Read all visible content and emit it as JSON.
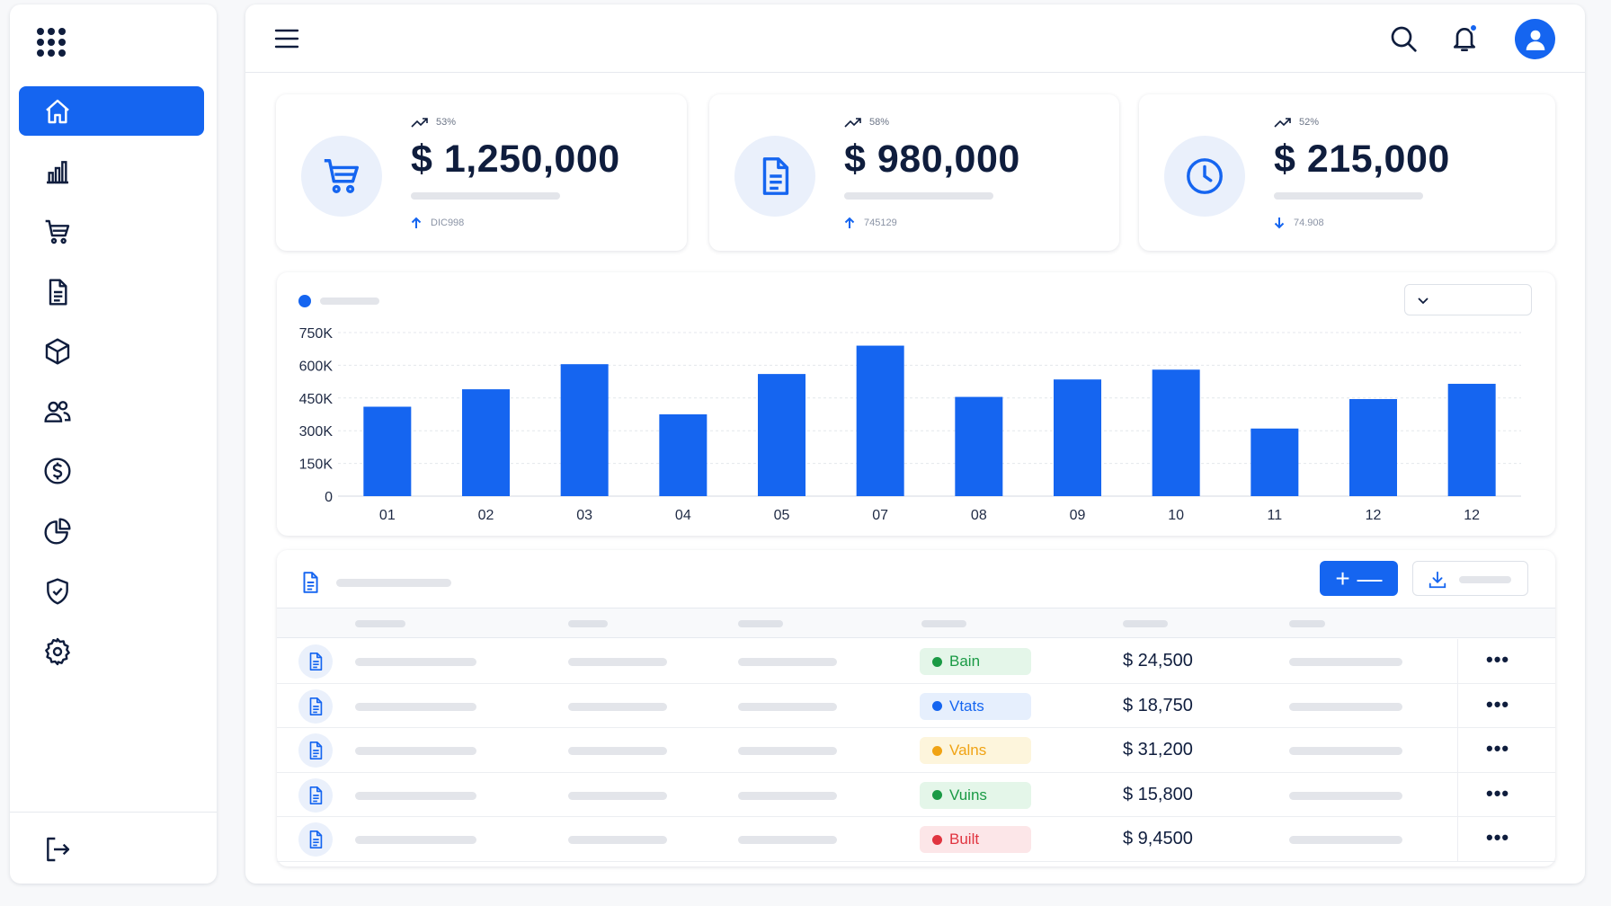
{
  "colors": {
    "accent": "#1565f0",
    "navy": "#0f1d3d",
    "placeholder": "#e3e5ea"
  },
  "sidebar": {
    "logo_icon": "apps-grid-icon",
    "items": [
      {
        "icon": "home-icon",
        "active": true
      },
      {
        "icon": "bar-chart-icon"
      },
      {
        "icon": "cart-icon"
      },
      {
        "icon": "document-icon"
      },
      {
        "icon": "box-icon"
      },
      {
        "icon": "users-icon"
      },
      {
        "icon": "dollar-icon"
      },
      {
        "icon": "pie-chart-icon"
      },
      {
        "icon": "shield-check-icon"
      },
      {
        "icon": "gear-icon"
      }
    ],
    "logout_icon": "logout-icon"
  },
  "header": {
    "menu_icon": "hamburger-icon",
    "search_icon": "search-icon",
    "notification_icon": "bell-icon",
    "avatar_icon": "user-avatar-icon"
  },
  "kpis": [
    {
      "icon": "cart-icon",
      "trend": "53%",
      "value": "$ 1,250,000",
      "sub": "DIC998",
      "direction": "up"
    },
    {
      "icon": "document-icon",
      "trend": "58%",
      "value": "$ 980,000",
      "sub": "745129",
      "direction": "up"
    },
    {
      "icon": "clock-icon",
      "trend": "52%",
      "value": "$ 215,000",
      "sub": "74.908",
      "direction": "down"
    }
  ],
  "chart_data": {
    "type": "bar",
    "categories": [
      "01",
      "02",
      "03",
      "04",
      "05",
      "07",
      "08",
      "09",
      "10",
      "11",
      "12",
      "12"
    ],
    "values": [
      410000,
      490000,
      605000,
      375000,
      560000,
      690000,
      455000,
      535000,
      580000,
      310000,
      445000,
      515000
    ],
    "yticks": [
      {
        "value": 750000,
        "label": "750K"
      },
      {
        "value": 600000,
        "label": "600K"
      },
      {
        "value": 450000,
        "label": "450K"
      },
      {
        "value": 300000,
        "label": "300K"
      },
      {
        "value": 150000,
        "label": "150K"
      },
      {
        "value": 0,
        "label": "0"
      }
    ],
    "ylim": [
      0,
      750000
    ],
    "grid": true,
    "color": "#1565f0"
  },
  "table": {
    "header_icon": "document-icon",
    "add_label": "+ —",
    "export_icon": "download-icon",
    "rows": [
      {
        "status": "Bain",
        "status_color": "#1a9a45",
        "status_bg": "#e4f6e9",
        "amount": "$ 24,500"
      },
      {
        "status": "Vtats",
        "status_color": "#1565f0",
        "status_bg": "#e6effd",
        "amount": "$ 18,750"
      },
      {
        "status": "Valns",
        "status_color": "#f0a314",
        "status_bg": "#fdf5dc",
        "amount": "$ 31,200"
      },
      {
        "status": "Vuins",
        "status_color": "#1a9a45",
        "status_bg": "#e4f6e9",
        "amount": "$ 15,800"
      },
      {
        "status": "Built",
        "status_color": "#e0343f",
        "status_bg": "#fce6e8",
        "amount": "$ 9,4500"
      }
    ],
    "more_label": "•••"
  }
}
